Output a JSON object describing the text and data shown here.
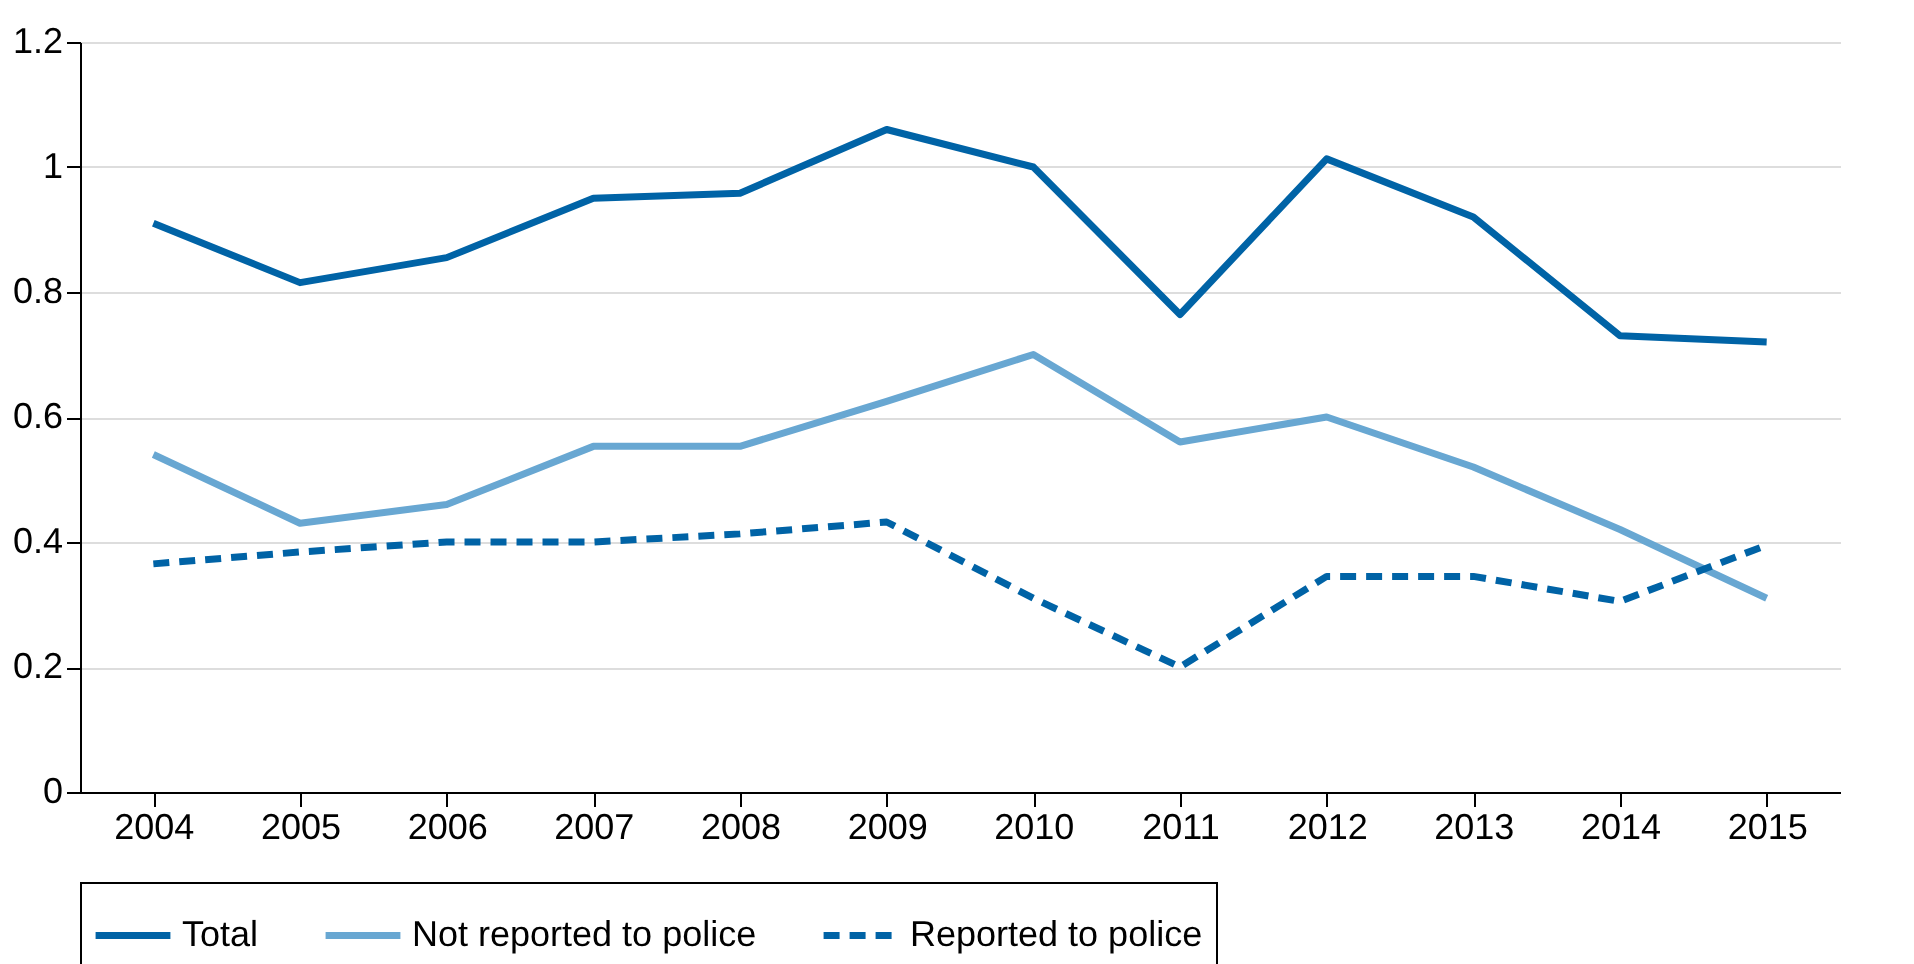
{
  "chart_data": {
    "type": "line",
    "categories": [
      "2004",
      "2005",
      "2006",
      "2007",
      "2008",
      "2009",
      "2010",
      "2011",
      "2012",
      "2013",
      "2014",
      "2015"
    ],
    "series": [
      {
        "name": "Total",
        "color": "#0063a6",
        "line_style": "solid",
        "values": [
          0.91,
          0.815,
          0.855,
          0.95,
          0.958,
          1.06,
          1.0,
          0.764,
          1.013,
          0.92,
          0.73,
          0.72
        ]
      },
      {
        "name": "Not reported to police",
        "color": "#68a7d2",
        "line_style": "solid",
        "values": [
          0.54,
          0.43,
          0.46,
          0.553,
          0.553,
          0.625,
          0.7,
          0.56,
          0.6,
          0.52,
          0.42,
          0.31
        ]
      },
      {
        "name": "Reported to police",
        "color": "#0063a6",
        "line_style": "dashed",
        "values": [
          0.365,
          0.384,
          0.4,
          0.4,
          0.413,
          0.432,
          0.31,
          0.2,
          0.345,
          0.345,
          0.305,
          0.395
        ]
      }
    ],
    "ylim": [
      0,
      1.2
    ],
    "yticks": [
      0,
      0.2,
      0.4,
      0.6,
      0.8,
      1,
      1.2
    ],
    "grid": "y",
    "legend": "bottom",
    "marker": "none"
  }
}
